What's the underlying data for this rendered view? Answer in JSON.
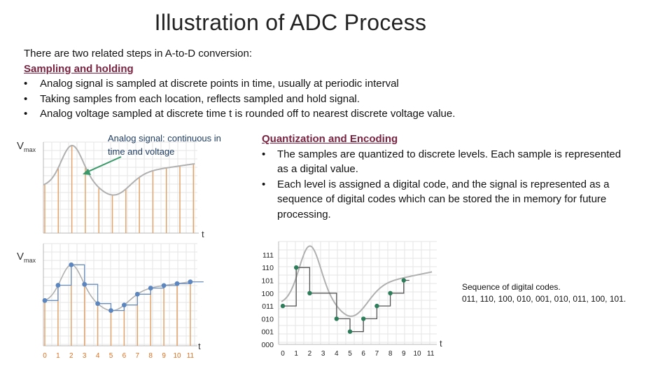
{
  "title": "Illustration of ADC Process",
  "intro": {
    "lead": "There are two related steps in A-to-D conversion:",
    "heading": "Sampling and holding",
    "bullets": [
      "Analog signal is sampled at discrete points in time, usually at periodic interval",
      "Taking samples from each location, reflects sampled and hold signal.",
      "Analog voltage sampled at discrete time t is rounded off to nearest discrete voltage value."
    ]
  },
  "callout": "Analog signal: continuous in time and voltage",
  "quantization": {
    "heading": "Quantization and Encoding",
    "bullets": [
      "The samples are quantized to discrete levels. Each sample is represented as a digital value.",
      "Each level is assigned a digital code, and the signal is represented as a sequence of digital codes which can be stored the in memory for future processing."
    ]
  },
  "codes": {
    "heading": "Sequence of digital codes.",
    "values": "011, 110, 100, 010, 001, 010, 011, 100, 101."
  },
  "plots": {
    "vmax_main": "V",
    "vmax_sub": "max",
    "t_label": "t",
    "sample_ticks": [
      "0",
      "1",
      "2",
      "3",
      "4",
      "5",
      "6",
      "7",
      "8",
      "9",
      "10",
      "11"
    ],
    "code_levels": [
      "000",
      "001",
      "010",
      "011",
      "100",
      "101",
      "110",
      "111"
    ],
    "colors": {
      "analog_curve": "#b0b0b0",
      "sample_line": "#e2a36a",
      "sample_point": "#5b86bf",
      "quant_point": "#2e7d5a",
      "tick_label": "#e07020",
      "heading": "#7b2340",
      "callout_text": "#1f3d63",
      "arrow": "#3a9a6a"
    }
  }
}
